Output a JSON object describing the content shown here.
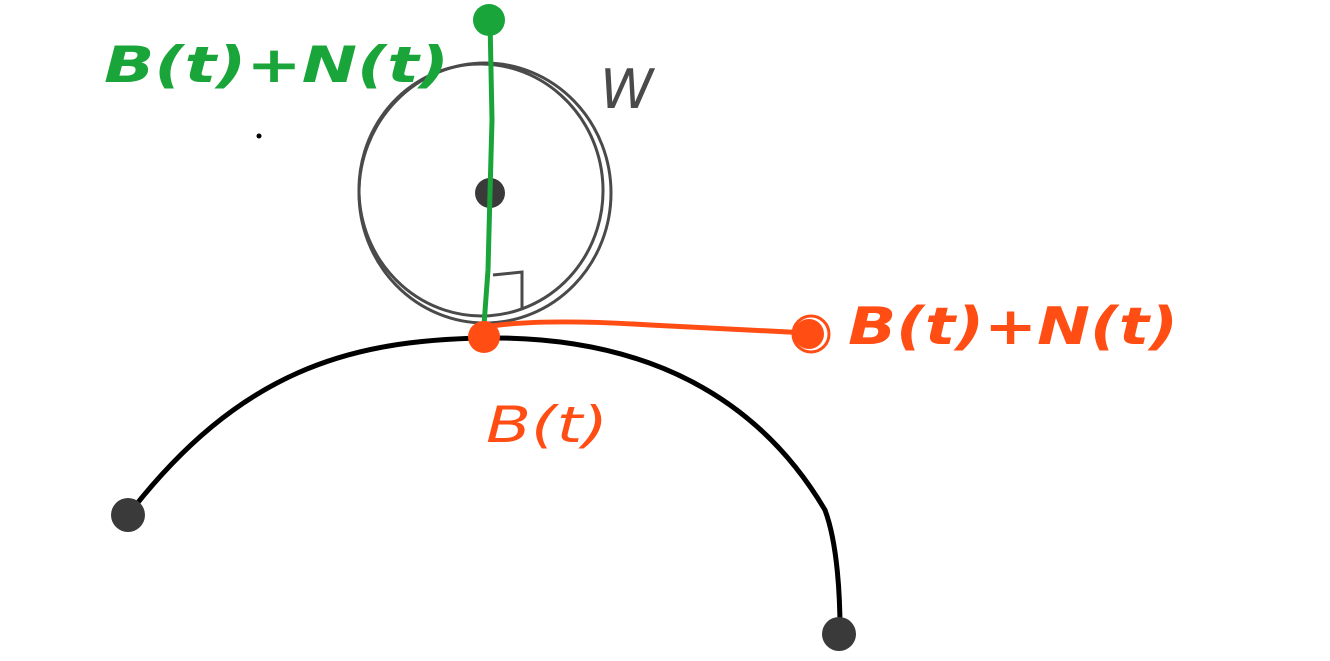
{
  "labels": {
    "offset_point_green": "B(t)+N(t)",
    "offset_point_orange": "B(t)+N(t)",
    "curve_point": "B(t)",
    "circle": "W"
  },
  "colors": {
    "curve": "#000000",
    "circle": "#4a4a4a",
    "green": "#1aa53a",
    "orange": "#ff4d14",
    "point": "#3a3a3a"
  }
}
